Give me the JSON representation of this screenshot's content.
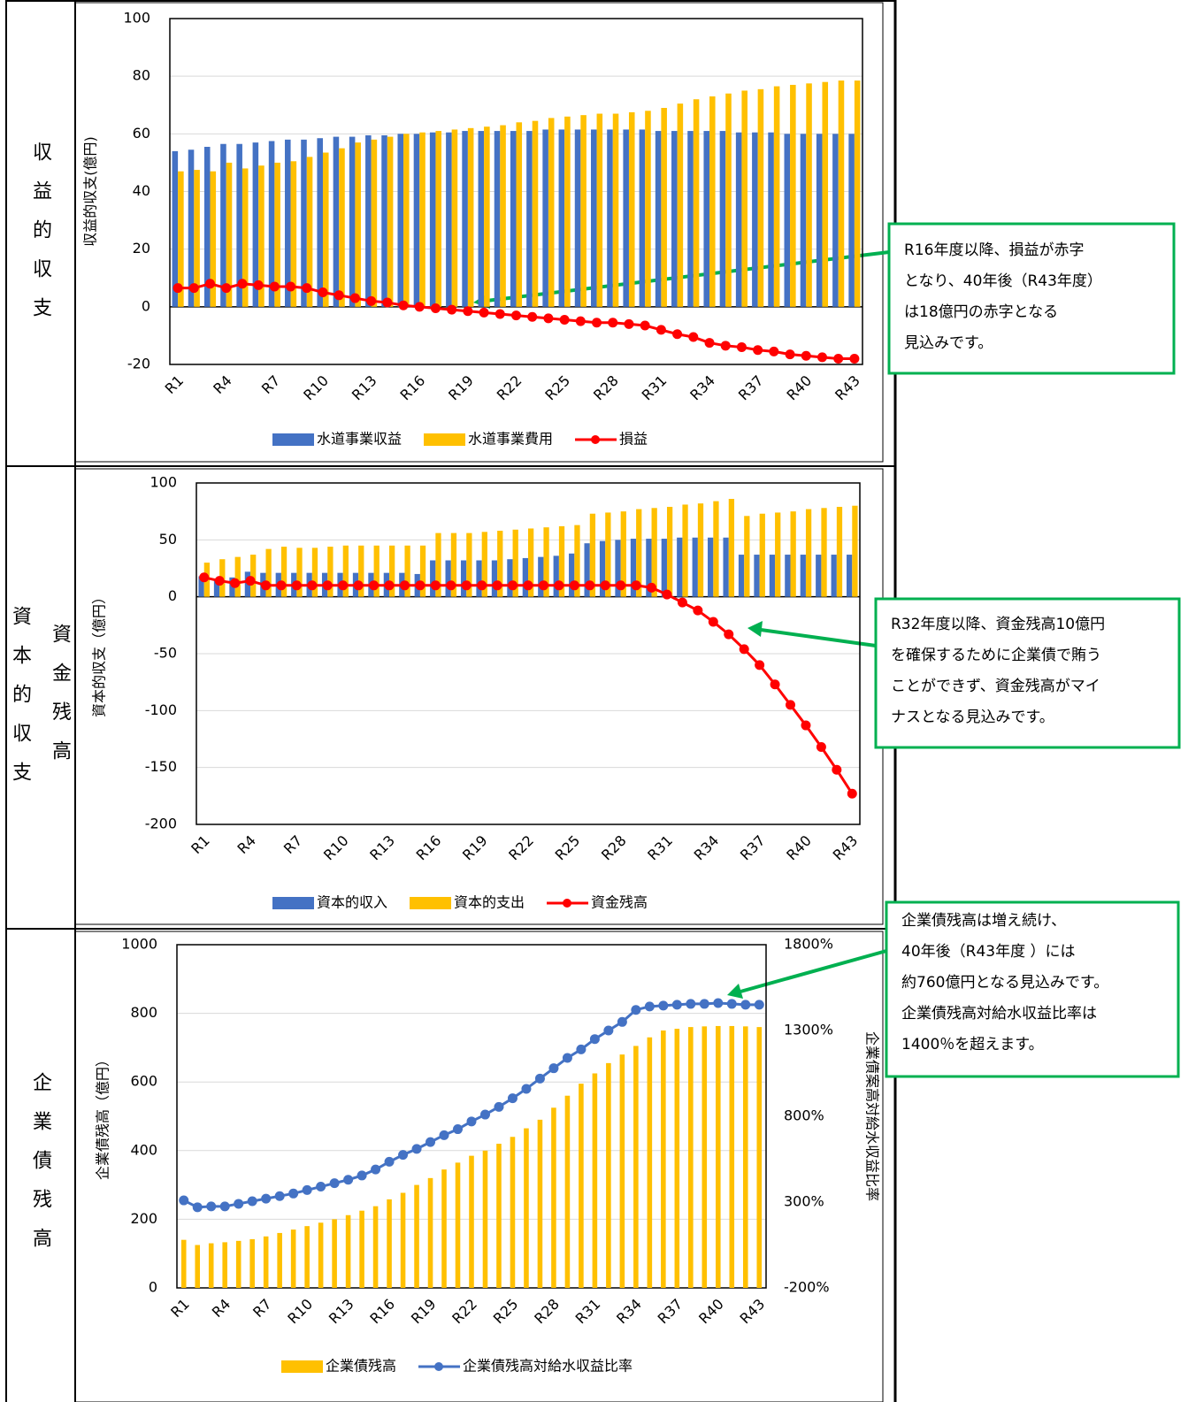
{
  "row_labels": [
    "収益的収支",
    "資本的収支",
    "資金残高",
    "企業債残高"
  ],
  "callouts": [
    {
      "lines": [
        "R16年度以降、損益が赤字",
        "となり、40年後（R43年度）",
        "は18億円の赤字となる",
        "見込みです。"
      ]
    },
    {
      "lines": [
        "R32年度以降、資金残高10億円",
        "を確保するために企業債で賄う",
        "ことができず、資金残高がマイ",
        "ナスとなる見込みです。"
      ]
    },
    {
      "lines": [
        "企業債残高は増え続け、",
        "40年後（R43年度 ）には",
        "約760億円となる見込みです。",
        "企業債残高対給水収益比率は",
        "1400％を超えます。"
      ]
    }
  ],
  "chart_data": [
    {
      "type": "combo",
      "y_label": "収益的収支(億円)",
      "grid": true,
      "categories": [
        "R1",
        null,
        null,
        "R4",
        null,
        null,
        "R7",
        null,
        null,
        "R10",
        null,
        null,
        "R13",
        null,
        null,
        "R16",
        null,
        null,
        "R19",
        null,
        null,
        "R22",
        null,
        null,
        "R25",
        null,
        null,
        "R28",
        null,
        null,
        "R31",
        null,
        null,
        "R34",
        null,
        null,
        "R37",
        null,
        null,
        "R40",
        null,
        null,
        "R43"
      ],
      "ylim": [
        -20,
        100
      ],
      "yticks": [
        -20,
        0,
        20,
        40,
        60,
        80,
        100
      ],
      "series": [
        {
          "name": "水道事業収益",
          "type": "bar",
          "color": "#4472c4",
          "values": [
            54,
            54.5,
            55.5,
            56.5,
            56.5,
            57,
            57.5,
            58,
            58,
            58.5,
            59,
            59,
            59.5,
            59.5,
            60,
            60,
            60.5,
            60.5,
            61,
            61,
            61,
            61,
            61,
            61.5,
            61.5,
            61.5,
            61.5,
            61.5,
            61.5,
            61.5,
            61,
            61,
            61,
            61,
            61,
            60.5,
            60.5,
            60.5,
            60,
            60,
            60,
            60,
            60
          ]
        },
        {
          "name": "水道事業費用",
          "type": "bar",
          "color": "#ffc000",
          "values": [
            47,
            47.5,
            47,
            50,
            48,
            49,
            50,
            50.5,
            52,
            53.5,
            55,
            57,
            58,
            59,
            60,
            60.5,
            61,
            61.5,
            62,
            62.5,
            63,
            64,
            64.5,
            65.5,
            66,
            66.5,
            67,
            67,
            67.5,
            68,
            69,
            70.5,
            72,
            73,
            74,
            75,
            75.5,
            76.5,
            77,
            77.5,
            78,
            78.5,
            78.5
          ]
        },
        {
          "name": "損益",
          "type": "line",
          "color": "#ff0000",
          "values": [
            6.5,
            6.5,
            8,
            6.5,
            8,
            7.5,
            7,
            7,
            6.5,
            5,
            4,
            3,
            2,
            1.5,
            0.5,
            0,
            -0.5,
            -1,
            -1.5,
            -2,
            -2.5,
            -3,
            -3.5,
            -4,
            -4.5,
            -5,
            -5.5,
            -5.5,
            -6,
            -6.5,
            -8,
            -9.5,
            -10.5,
            -12.5,
            -13.5,
            -14,
            -15,
            -15.5,
            -16.5,
            -17,
            -17.5,
            -18,
            -18
          ]
        }
      ]
    },
    {
      "type": "combo",
      "y_label": "資本的収支（億円）",
      "grid": true,
      "categories": [
        "R1",
        null,
        null,
        "R4",
        null,
        null,
        "R7",
        null,
        null,
        "R10",
        null,
        null,
        "R13",
        null,
        null,
        "R16",
        null,
        null,
        "R19",
        null,
        null,
        "R22",
        null,
        null,
        "R25",
        null,
        null,
        "R28",
        null,
        null,
        "R31",
        null,
        null,
        "R34",
        null,
        null,
        "R37",
        null,
        null,
        "R40",
        null,
        null,
        "R43"
      ],
      "ylim": [
        -200,
        100
      ],
      "yticks": [
        -200,
        -150,
        -100,
        -50,
        0,
        50,
        100
      ],
      "series": [
        {
          "name": "資本的収入",
          "type": "bar",
          "color": "#4472c4",
          "values": [
            18,
            16,
            17,
            22,
            21,
            21,
            21,
            21,
            21,
            21,
            21,
            21,
            21,
            21,
            20,
            32,
            32,
            32,
            32,
            32,
            33,
            34,
            35,
            36,
            38,
            47,
            49,
            50,
            51,
            51,
            51,
            52,
            52,
            52,
            52,
            37,
            37,
            37,
            37,
            37,
            37,
            37,
            37
          ]
        },
        {
          "name": "資本的支出",
          "type": "bar",
          "color": "#ffc000",
          "values": [
            30,
            33,
            35,
            37,
            42,
            44,
            43,
            43,
            44,
            45,
            45,
            45,
            45,
            45,
            45,
            56,
            56,
            56,
            57,
            58,
            59,
            60,
            61,
            62,
            63,
            73,
            74,
            75,
            77,
            78,
            79,
            81,
            82,
            84,
            86,
            71,
            73,
            74,
            75,
            77,
            78,
            79,
            80
          ]
        },
        {
          "name": "資金残高",
          "type": "line",
          "color": "#ff0000",
          "values": [
            17,
            14,
            12,
            14,
            10,
            10,
            10,
            10,
            10,
            10,
            10,
            10,
            10,
            10,
            10,
            10,
            10,
            10,
            10,
            10,
            10,
            10,
            10,
            10,
            10,
            10,
            10,
            10,
            10,
            8,
            2,
            -5,
            -12,
            -22,
            -33,
            -46,
            -60,
            -77,
            -95,
            -113,
            -132,
            -152,
            -173
          ]
        }
      ]
    },
    {
      "type": "combo",
      "y_label": "企業債残高（億円）",
      "y2_label": "企業債案高対給水収益比率",
      "grid": true,
      "categories": [
        "R1",
        null,
        null,
        "R4",
        null,
        null,
        "R7",
        null,
        null,
        "R10",
        null,
        null,
        "R13",
        null,
        null,
        "R16",
        null,
        null,
        "R19",
        null,
        null,
        "R22",
        null,
        null,
        "R25",
        null,
        null,
        "R28",
        null,
        null,
        "R31",
        null,
        null,
        "R34",
        null,
        null,
        "R37",
        null,
        null,
        "R40",
        null,
        null,
        "R43"
      ],
      "ylim": [
        0,
        1000
      ],
      "yticks": [
        0,
        200,
        400,
        600,
        800,
        1000
      ],
      "y2lim": [
        -200,
        1800
      ],
      "y2ticks": [
        {
          "value": -200,
          "label": "-200%"
        },
        {
          "value": 300,
          "label": "300%"
        },
        {
          "value": 800,
          "label": "800%"
        },
        {
          "value": 1300,
          "label": "1300%"
        },
        {
          "value": 1800,
          "label": "1800%"
        }
      ],
      "series": [
        {
          "name": "企業債残高",
          "type": "bar",
          "color": "#ffc000",
          "values": [
            140,
            125,
            130,
            133,
            137,
            142,
            150,
            160,
            170,
            180,
            190,
            200,
            212,
            225,
            238,
            258,
            277,
            300,
            320,
            345,
            365,
            385,
            400,
            420,
            440,
            465,
            490,
            525,
            560,
            595,
            625,
            655,
            680,
            705,
            730,
            750,
            755,
            760,
            762,
            763,
            763,
            762,
            760
          ]
        },
        {
          "name": "企業債残高対給水収益比率",
          "type": "line",
          "axis": "y2",
          "color": "#4472c4",
          "values": [
            310,
            270,
            275,
            275,
            290,
            305,
            320,
            335,
            350,
            370,
            390,
            410,
            430,
            455,
            490,
            535,
            575,
            610,
            650,
            690,
            725,
            770,
            810,
            855,
            905,
            960,
            1020,
            1080,
            1140,
            1190,
            1250,
            1300,
            1350,
            1420,
            1440,
            1445,
            1450,
            1455,
            1455,
            1460,
            1455,
            1450,
            1450
          ]
        }
      ]
    }
  ]
}
